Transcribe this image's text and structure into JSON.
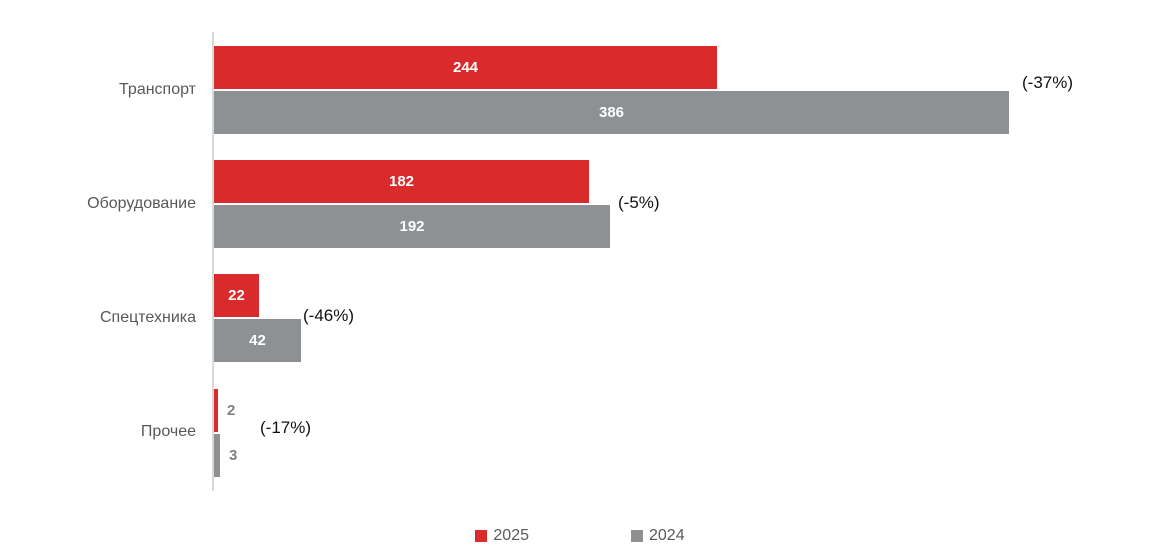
{
  "chart_data": {
    "type": "bar",
    "orientation": "horizontal",
    "title": "",
    "xlabel": "",
    "ylabel": "",
    "categories": [
      "Транспорт",
      "Оборудование",
      "Спецтехника",
      "Прочее"
    ],
    "series": [
      {
        "name": "2025",
        "color": "#d92b2b",
        "values": [
          244,
          182,
          22,
          2
        ]
      },
      {
        "name": "2024",
        "color": "#8e9193",
        "values": [
          386,
          192,
          42,
          3
        ]
      }
    ],
    "change_labels": [
      "(-37%)",
      "(-5%)",
      "(-46%)",
      "(-17%)"
    ],
    "xlim": [
      0,
      400
    ],
    "grid": false,
    "axis_ticks_visible": false,
    "legend_position": "bottom",
    "value_label_style": {
      "inside_color": "#ffffff",
      "outside_color": "#7f8285"
    },
    "axis_line_color": "#d9d9d9"
  }
}
